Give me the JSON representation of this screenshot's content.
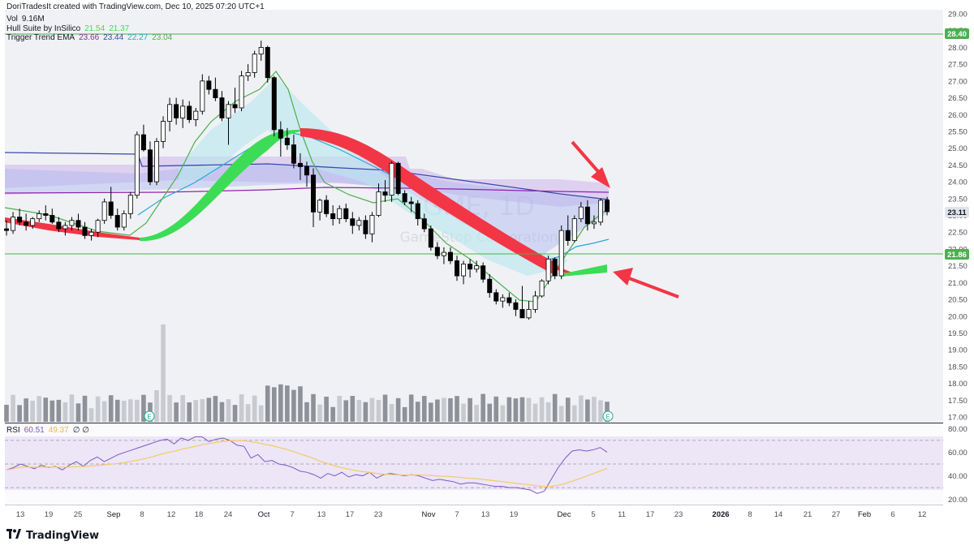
{
  "header": {
    "attribution": "DoriTradesIt created with TradingView.com, Dec 10, 2025 07:20 UTC+1",
    "volume_label": "Vol",
    "volume_value": "9.16M",
    "hull_label": "Hull Suite by InSilico",
    "hull_value_1": "21.54",
    "hull_value_2": "21.37",
    "ema_label": "Trigger Trend EMA",
    "ema_values": [
      "23.66",
      "23.44",
      "22.27",
      "23.04"
    ],
    "rsi_label": "RSI",
    "rsi_value_1": "60.51",
    "rsi_value_2": "49.37",
    "rsi_extra": "∅ ∅"
  },
  "watermark": {
    "symbol": "GME, 1D",
    "company": "GameStop Corporation"
  },
  "footer": {
    "brand": "TradingView"
  },
  "colors": {
    "up_candle": "#ffffff",
    "down_candle": "#000000",
    "hull_green": "#3ddc57",
    "hull_red": "#f23645",
    "h_line": "#4caf50",
    "price_tag": "#131722",
    "rsi_line": "#7e57c2",
    "rsi_ma": "#f5c96a",
    "arrow": "#f23645"
  },
  "chart_data": {
    "type": "candlestick",
    "y_axis": {
      "ticks": [
        "29.00",
        "28.50",
        "28.00",
        "27.50",
        "27.00",
        "26.50",
        "26.00",
        "25.50",
        "25.00",
        "24.50",
        "24.00",
        "23.50",
        "23.00",
        "22.50",
        "22.00",
        "21.50",
        "21.00",
        "20.50",
        "20.00",
        "19.50",
        "19.00",
        "18.50",
        "18.00",
        "17.50",
        "17.00"
      ],
      "range": [
        17.0,
        29.0
      ]
    },
    "horizontal_lines": [
      {
        "price": 28.4,
        "label": "28.40"
      },
      {
        "price": 21.86,
        "label": "21.86"
      }
    ],
    "last_price": {
      "price": 23.11,
      "label": "23.11"
    },
    "x_axis_labels": [
      "13",
      "19",
      "25",
      "Sep",
      "8",
      "12",
      "18",
      "24",
      "Oct",
      "7",
      "13",
      "17",
      "23",
      "Nov",
      "7",
      "13",
      "19",
      "Dec",
      "5",
      "11",
      "17",
      "23",
      "2026",
      "8",
      "14",
      "21",
      "27",
      "Feb",
      "6",
      "12"
    ],
    "candles": [
      [
        22.6,
        22.85,
        22.4,
        22.55
      ],
      [
        22.55,
        23.1,
        22.45,
        22.95
      ],
      [
        22.95,
        23.2,
        22.7,
        22.8
      ],
      [
        22.8,
        23.05,
        22.55,
        22.7
      ],
      [
        22.7,
        22.95,
        22.6,
        22.9
      ],
      [
        22.9,
        23.15,
        22.8,
        23.05
      ],
      [
        23.05,
        23.3,
        22.85,
        23.0
      ],
      [
        23.0,
        23.2,
        22.75,
        22.8
      ],
      [
        22.8,
        22.95,
        22.5,
        22.6
      ],
      [
        22.6,
        22.8,
        22.4,
        22.7
      ],
      [
        22.7,
        22.95,
        22.55,
        22.85
      ],
      [
        22.85,
        23.05,
        22.55,
        22.65
      ],
      [
        22.65,
        22.8,
        22.3,
        22.4
      ],
      [
        22.4,
        22.6,
        22.25,
        22.5
      ],
      [
        22.5,
        22.9,
        22.35,
        22.85
      ],
      [
        22.85,
        23.5,
        22.75,
        23.4
      ],
      [
        23.4,
        23.85,
        22.9,
        23.0
      ],
      [
        23.0,
        23.2,
        22.55,
        22.65
      ],
      [
        22.65,
        23.15,
        22.55,
        23.05
      ],
      [
        23.05,
        23.7,
        22.9,
        23.6
      ],
      [
        23.6,
        25.5,
        23.5,
        25.4
      ],
      [
        25.4,
        25.7,
        24.9,
        24.95
      ],
      [
        24.95,
        25.2,
        23.9,
        24.0
      ],
      [
        24.0,
        25.3,
        23.9,
        25.2
      ],
      [
        25.2,
        25.95,
        25.0,
        25.8
      ],
      [
        25.8,
        26.5,
        25.5,
        26.3
      ],
      [
        26.3,
        26.5,
        25.7,
        25.9
      ],
      [
        25.9,
        26.45,
        25.6,
        26.25
      ],
      [
        26.25,
        26.4,
        25.75,
        25.85
      ],
      [
        25.85,
        26.2,
        25.65,
        26.1
      ],
      [
        26.1,
        27.2,
        26.0,
        27.0
      ],
      [
        27.0,
        27.15,
        26.6,
        26.75
      ],
      [
        26.75,
        27.1,
        26.4,
        26.5
      ],
      [
        26.5,
        26.7,
        25.8,
        25.9
      ],
      [
        25.9,
        26.4,
        25.1,
        26.3
      ],
      [
        26.3,
        26.8,
        26.05,
        26.2
      ],
      [
        26.2,
        27.3,
        26.1,
        27.15
      ],
      [
        27.15,
        27.5,
        27.0,
        27.25
      ],
      [
        27.25,
        27.9,
        27.1,
        27.8
      ],
      [
        27.8,
        28.2,
        27.6,
        28.0
      ],
      [
        28.0,
        28.05,
        26.95,
        27.1
      ],
      [
        27.1,
        27.15,
        25.35,
        25.55
      ],
      [
        25.55,
        25.8,
        24.75,
        25.3
      ],
      [
        25.3,
        25.6,
        24.95,
        25.1
      ],
      [
        25.1,
        25.4,
        24.4,
        24.55
      ],
      [
        24.55,
        24.85,
        24.05,
        24.45
      ],
      [
        24.45,
        24.6,
        23.85,
        24.2
      ],
      [
        24.2,
        24.4,
        22.65,
        23.1
      ],
      [
        23.1,
        23.5,
        22.85,
        23.45
      ],
      [
        23.45,
        23.6,
        22.95,
        23.05
      ],
      [
        23.05,
        23.3,
        22.7,
        22.9
      ],
      [
        22.9,
        23.3,
        22.75,
        23.2
      ],
      [
        23.2,
        23.35,
        22.8,
        22.9
      ],
      [
        22.9,
        23.1,
        22.45,
        22.7
      ],
      [
        22.7,
        22.95,
        22.55,
        22.85
      ],
      [
        22.85,
        23.0,
        22.3,
        22.45
      ],
      [
        22.45,
        23.1,
        22.2,
        23.0
      ],
      [
        23.0,
        23.95,
        22.95,
        23.7
      ],
      [
        23.7,
        24.05,
        23.4,
        23.6
      ],
      [
        23.6,
        24.6,
        23.4,
        24.55
      ],
      [
        24.55,
        24.6,
        23.6,
        23.65
      ],
      [
        23.65,
        23.75,
        23.3,
        23.4
      ],
      [
        23.4,
        23.55,
        23.1,
        23.35
      ],
      [
        23.35,
        23.45,
        22.7,
        22.9
      ],
      [
        22.9,
        23.05,
        22.5,
        22.6
      ],
      [
        22.6,
        22.7,
        21.95,
        22.05
      ],
      [
        22.05,
        22.2,
        21.7,
        21.8
      ],
      [
        21.8,
        22.05,
        21.55,
        21.9
      ],
      [
        21.9,
        22.05,
        21.55,
        21.65
      ],
      [
        21.65,
        21.8,
        21.05,
        21.2
      ],
      [
        21.2,
        21.65,
        20.95,
        21.55
      ],
      [
        21.55,
        21.7,
        21.15,
        21.4
      ],
      [
        21.4,
        21.65,
        21.3,
        21.5
      ],
      [
        21.5,
        21.6,
        21.0,
        21.1
      ],
      [
        21.1,
        21.25,
        20.55,
        20.7
      ],
      [
        20.7,
        20.8,
        20.35,
        20.45
      ],
      [
        20.45,
        20.65,
        20.25,
        20.55
      ],
      [
        20.55,
        20.7,
        20.3,
        20.4
      ],
      [
        20.4,
        20.5,
        20.0,
        20.2
      ],
      [
        20.2,
        20.9,
        19.95,
        19.95
      ],
      [
        19.95,
        20.45,
        19.9,
        20.2
      ],
      [
        20.2,
        20.75,
        20.1,
        20.6
      ],
      [
        20.6,
        21.1,
        20.55,
        21.05
      ],
      [
        21.05,
        21.8,
        20.95,
        21.7
      ],
      [
        21.7,
        21.75,
        21.1,
        21.2
      ],
      [
        21.2,
        22.7,
        21.1,
        22.55
      ],
      [
        22.55,
        23.0,
        22.1,
        22.25
      ],
      [
        22.25,
        23.0,
        22.2,
        22.9
      ],
      [
        22.9,
        23.4,
        22.8,
        23.25
      ],
      [
        23.25,
        23.45,
        22.55,
        22.75
      ],
      [
        22.75,
        23.0,
        22.6,
        22.8
      ],
      [
        22.8,
        23.5,
        22.7,
        23.45
      ],
      [
        23.45,
        23.55,
        23.0,
        23.11
      ]
    ],
    "volume_series": [
      "—",
      "1.4",
      "1.6",
      "1.1",
      "1.5",
      "1.2",
      "1.0",
      "1.4",
      "1.1",
      "1.5",
      "1.2",
      "1.6",
      "1.3",
      "1.7",
      "2.6",
      "1.8",
      "1.6",
      "2.2",
      "9.16"
    ],
    "rsi": {
      "ticks": [
        "80.00",
        "60.00",
        "40.00",
        "20.00"
      ],
      "range": [
        17,
        83
      ],
      "levels": [
        70,
        50,
        30
      ],
      "points": [
        45,
        47,
        50,
        48,
        46,
        49,
        47,
        48,
        45,
        49,
        52,
        48,
        53,
        56,
        52,
        55,
        58,
        60,
        62,
        64,
        66,
        68,
        70,
        71,
        67,
        72,
        70,
        73,
        73,
        69,
        71,
        72,
        70,
        66,
        65,
        55,
        58,
        52,
        53,
        50,
        49,
        47,
        44,
        43,
        41,
        38,
        42,
        40,
        43,
        39,
        41,
        40,
        43,
        38,
        41,
        42,
        41,
        40,
        41,
        40,
        38,
        36,
        37,
        36,
        35,
        33,
        34,
        34,
        33,
        32,
        31,
        31,
        30,
        30,
        29,
        28,
        25,
        27,
        37,
        47,
        55,
        61,
        62,
        61,
        62,
        64,
        60
      ]
    }
  }
}
